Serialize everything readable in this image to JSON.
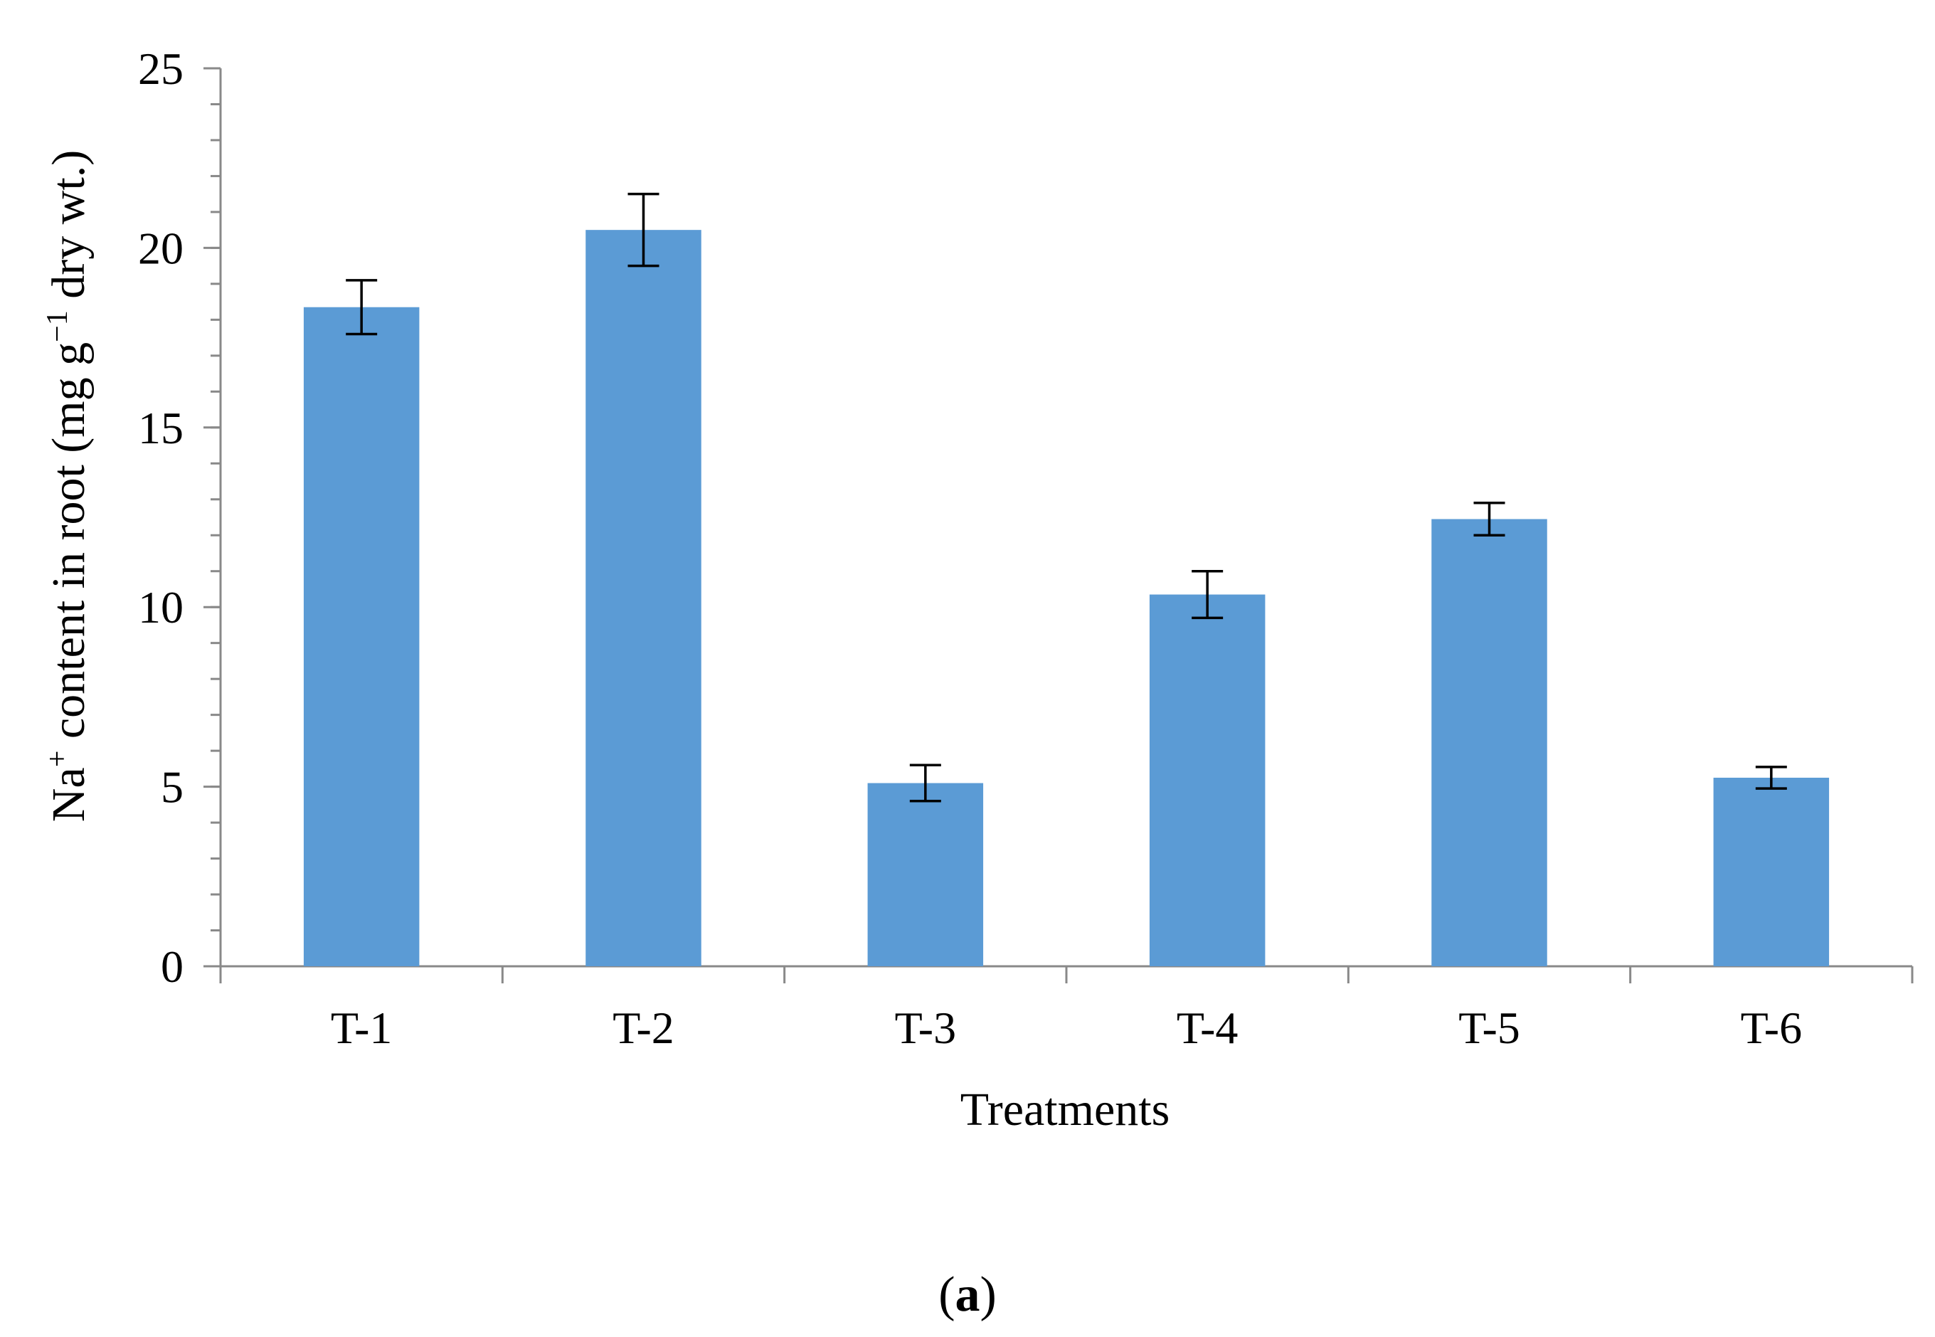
{
  "chart_data": {
    "type": "bar",
    "categories": [
      "T-1",
      "T-2",
      "T-3",
      "T-4",
      "T-5",
      "T-6"
    ],
    "values": [
      18.35,
      20.5,
      5.1,
      10.35,
      12.45,
      5.25
    ],
    "errors": [
      0.75,
      1.0,
      0.5,
      0.65,
      0.45,
      0.3
    ],
    "ylim": [
      0,
      25
    ],
    "yticks": [
      "0",
      "5",
      "10",
      "15",
      "20",
      "25"
    ],
    "ytick_values": [
      0,
      5,
      10,
      15,
      20,
      25
    ],
    "yminor_step": 1,
    "xlabel": "Treatments",
    "ylabel": {
      "prefix": "Na",
      "sup1": "+",
      "middle": " content in root (mg g",
      "sup2": "−1",
      "suffix": " dry wt.)"
    },
    "grid": false,
    "legend": "none",
    "bar_color": "#5b9bd5",
    "axis_color": "#898989",
    "error_color": "#000000"
  },
  "panel_label": {
    "open": "(",
    "letter": "a",
    "close": ")"
  }
}
